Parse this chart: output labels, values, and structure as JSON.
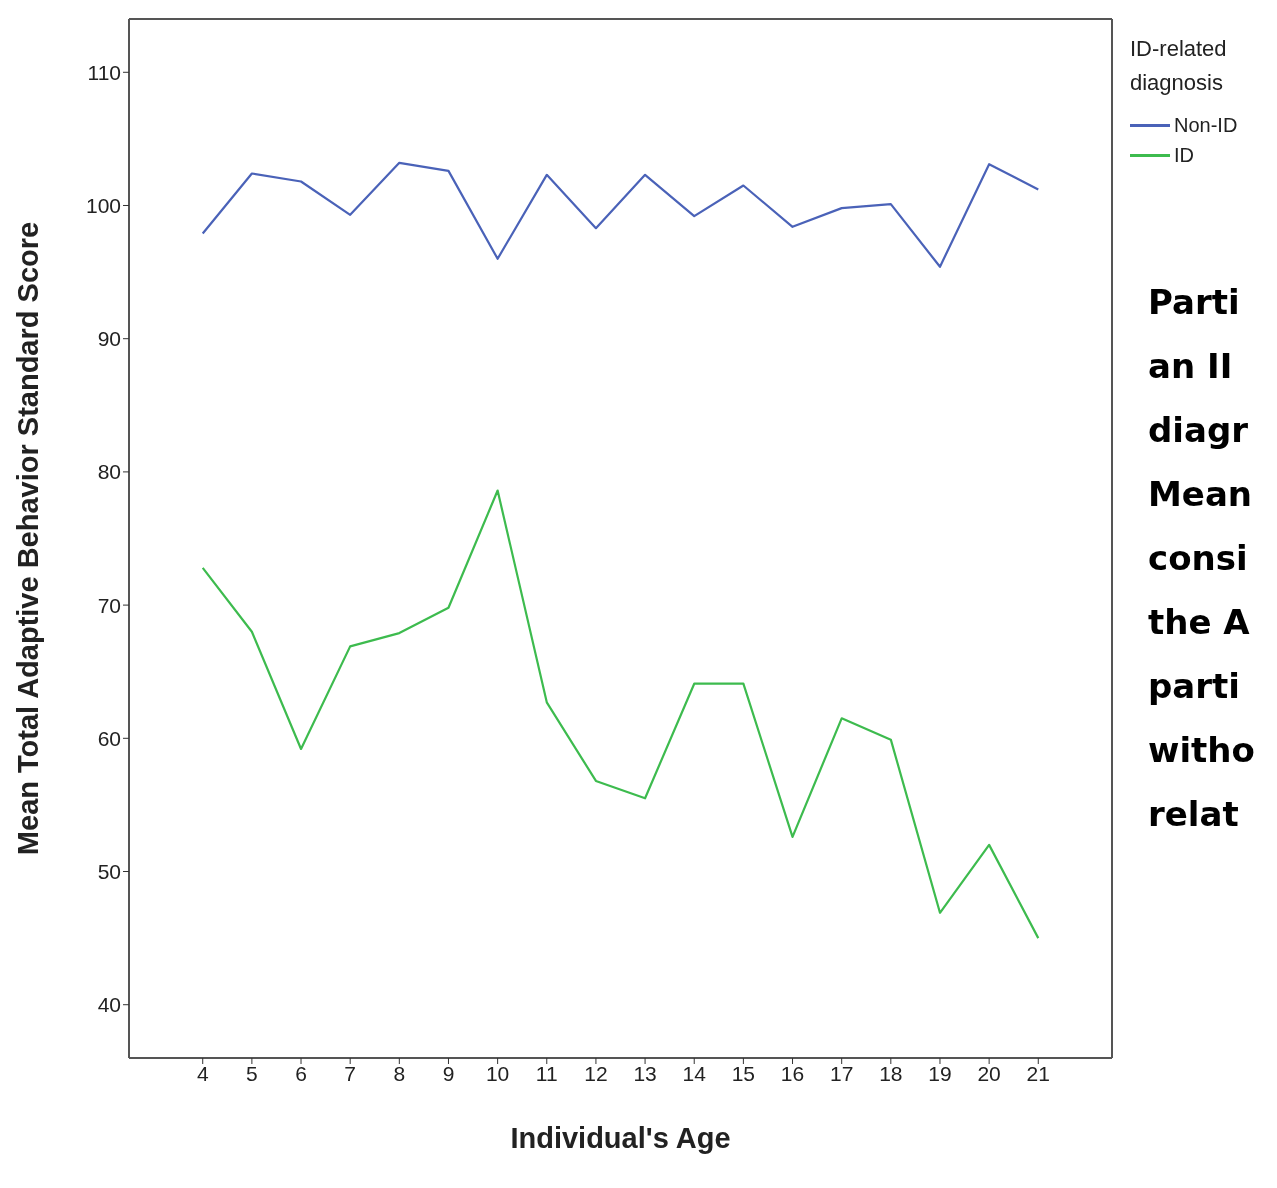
{
  "chart_data": {
    "type": "line",
    "xlabel": "Individual's Age",
    "ylabel": "Mean Total Adaptive Behavior Standard Score",
    "legend_title": "ID-related diagnosis",
    "legend": "right",
    "x": [
      4,
      5,
      6,
      7,
      8,
      9,
      10,
      11,
      12,
      13,
      14,
      15,
      16,
      17,
      18,
      19,
      20,
      21
    ],
    "series": [
      {
        "name": "Non-ID",
        "color": "#4a62b8",
        "values": [
          97.9,
          102.4,
          101.8,
          99.3,
          103.2,
          102.6,
          96.0,
          102.3,
          98.3,
          102.3,
          99.2,
          101.5,
          98.4,
          99.8,
          100.1,
          95.4,
          103.1,
          101.2
        ]
      },
      {
        "name": "ID",
        "color": "#3dbb4e",
        "values": [
          72.8,
          68.0,
          59.2,
          66.9,
          67.9,
          69.8,
          78.6,
          62.7,
          56.8,
          55.5,
          64.1,
          64.1,
          52.6,
          61.5,
          59.9,
          46.9,
          52.0,
          45.0
        ]
      }
    ],
    "xlim": [
      2.5,
      22.5
    ],
    "xticks": [
      4,
      5,
      6,
      7,
      8,
      9,
      10,
      11,
      12,
      13,
      14,
      15,
      16,
      17,
      18,
      19,
      20,
      21
    ],
    "ylim": [
      36,
      114
    ],
    "yticks": [
      40,
      50,
      60,
      70,
      80,
      90,
      100,
      110
    ],
    "marker": "none",
    "line_style": "solid",
    "annotations": [
      "Parti\nan II\ndiagr\nMean\nconsi\nthe A\nparti\nwitho\nrelat"
    ]
  }
}
